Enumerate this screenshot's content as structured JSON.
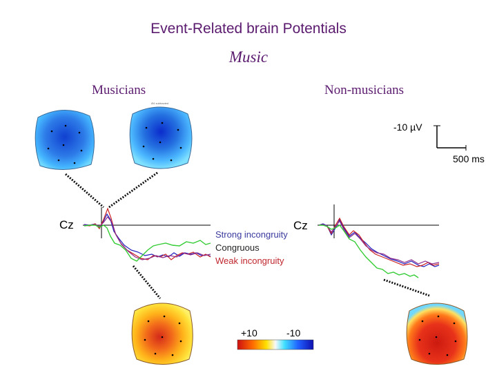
{
  "title": "Event-Related brain Potentials",
  "subtitle": "Music",
  "groups": {
    "left": "Musicians",
    "right": "Non-musicians"
  },
  "electrode_labels": {
    "left": "Cz",
    "right": "Cz"
  },
  "scale_bar": {
    "amplitude": "-10 µV",
    "time": "500 ms"
  },
  "legend": [
    {
      "label": "Strong incongruity",
      "color": "#3a3aa0"
    },
    {
      "label": "Congruous",
      "color": "#222222"
    },
    {
      "label": "Weak incongruity",
      "color": "#c0262e"
    }
  ],
  "colorbar": {
    "left_label": "+10",
    "right_label": "-10"
  },
  "tiny_text": "Ø4 subtracted",
  "colors": {
    "title": "#5a1a6e",
    "green": "#33cc33",
    "blue": "#2020c0",
    "red": "#cc2020",
    "purple": "#8a2a8a"
  }
}
